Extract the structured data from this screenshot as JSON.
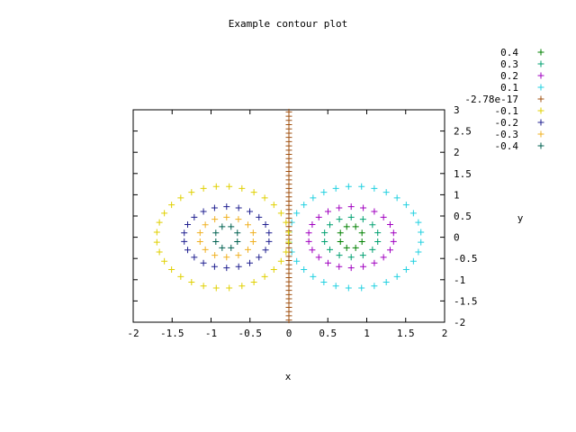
{
  "chart_data": {
    "type": "scatter",
    "title": "Example contour plot",
    "xlabel": "x",
    "ylabel": "y",
    "xlim": [
      -2,
      2
    ],
    "ylim": [
      -2,
      3
    ],
    "grid": false,
    "legend_position": "top-right",
    "x_ticks": [
      {
        "value": -2,
        "label": "-2"
      },
      {
        "value": -1.5,
        "label": "-1.5"
      },
      {
        "value": -1,
        "label": "-1"
      },
      {
        "value": -0.5,
        "label": "-0.5"
      },
      {
        "value": 0,
        "label": "0"
      },
      {
        "value": 0.5,
        "label": "0.5"
      },
      {
        "value": 1,
        "label": "1"
      },
      {
        "value": 1.5,
        "label": "1.5"
      },
      {
        "value": 2,
        "label": "2"
      }
    ],
    "y_ticks": [
      {
        "value": 3,
        "label": "3"
      },
      {
        "value": 2.5,
        "label": "2.5"
      },
      {
        "value": 2,
        "label": "2"
      },
      {
        "value": 1.5,
        "label": "1.5"
      },
      {
        "value": 1,
        "label": "1"
      },
      {
        "value": 0.5,
        "label": "0.5"
      },
      {
        "value": 0,
        "label": "0"
      },
      {
        "value": -0.5,
        "label": "-0.5"
      },
      {
        "value": -1,
        "label": "-1"
      },
      {
        "value": -1.5,
        "label": "-1.5"
      },
      {
        "value": -2,
        "label": "-2"
      }
    ],
    "series": [
      {
        "name": "0.4",
        "color": "#008000",
        "shape": "ellipse",
        "center": [
          0.8,
          0
        ],
        "radii": [
          0.15,
          0.27
        ],
        "points": 8
      },
      {
        "name": "0.3",
        "color": "#00a070",
        "shape": "ellipse",
        "center": [
          0.8,
          0
        ],
        "radii": [
          0.35,
          0.47
        ],
        "points": 14
      },
      {
        "name": "0.2",
        "color": "#a000c0",
        "shape": "ellipse",
        "center": [
          0.8,
          0
        ],
        "radii": [
          0.55,
          0.72
        ],
        "points": 22
      },
      {
        "name": "0.1",
        "color": "#20d0e0",
        "shape": "ellipse",
        "center": [
          0.85,
          0
        ],
        "radii": [
          0.85,
          1.2
        ],
        "points": 32
      },
      {
        "name": "-2.78e-17",
        "color": "#a05010",
        "shape": "vertical",
        "x": 0,
        "y_range": [
          -1.95,
          2.95
        ],
        "points": 50
      },
      {
        "name": "-0.1",
        "color": "#e0d000",
        "shape": "ellipse",
        "center": [
          -0.85,
          0
        ],
        "radii": [
          0.85,
          1.2
        ],
        "points": 32
      },
      {
        "name": "-0.2",
        "color": "#202090",
        "shape": "ellipse",
        "center": [
          -0.8,
          0
        ],
        "radii": [
          0.55,
          0.72
        ],
        "points": 22
      },
      {
        "name": "-0.3",
        "color": "#f0b020",
        "shape": "ellipse",
        "center": [
          -0.8,
          0
        ],
        "radii": [
          0.35,
          0.47
        ],
        "points": 14
      },
      {
        "name": "-0.4",
        "color": "#006050",
        "shape": "ellipse",
        "center": [
          -0.8,
          0
        ],
        "radii": [
          0.15,
          0.27
        ],
        "points": 8
      }
    ]
  }
}
